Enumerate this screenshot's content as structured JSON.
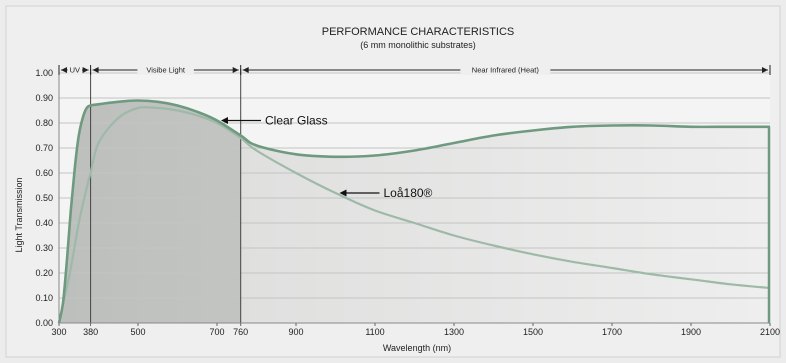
{
  "chart_data": {
    "type": "line",
    "title": "PERFORMANCE CHARACTERISTICS",
    "subtitle": "(6 mm monolithic substrates)",
    "xlabel": "Wavelength (nm)",
    "ylabel": "Light Transmission",
    "xlim": [
      300,
      2100
    ],
    "ylim": [
      0,
      1.0
    ],
    "x_ticks": [
      {
        "value": 300,
        "label": "300"
      },
      {
        "value": 380,
        "label": "380"
      },
      {
        "value": 500,
        "label": "500"
      },
      {
        "value": 700,
        "label": "700"
      },
      {
        "value": 760,
        "label": "760"
      },
      {
        "value": 900,
        "label": "900"
      },
      {
        "value": 1100,
        "label": "1100"
      },
      {
        "value": 1300,
        "label": "1300"
      },
      {
        "value": 1500,
        "label": "1500"
      },
      {
        "value": 1700,
        "label": "1700"
      },
      {
        "value": 1900,
        "label": "1900"
      },
      {
        "value": 2100,
        "label": "2100"
      }
    ],
    "y_ticks": [
      {
        "value": 0.0,
        "label": "0.00"
      },
      {
        "value": 0.1,
        "label": "0.10"
      },
      {
        "value": 0.2,
        "label": "0.20"
      },
      {
        "value": 0.3,
        "label": "0.30"
      },
      {
        "value": 0.4,
        "label": "0.40"
      },
      {
        "value": 0.5,
        "label": "0.50"
      },
      {
        "value": 0.6,
        "label": "0.60"
      },
      {
        "value": 0.7,
        "label": "0.70"
      },
      {
        "value": 0.8,
        "label": "0.80"
      },
      {
        "value": 0.9,
        "label": "0.90"
      },
      {
        "value": 1.0,
        "label": "1.00"
      }
    ],
    "grid": "horizontal",
    "regions": [
      {
        "label": "UV",
        "x": [
          300,
          380
        ]
      },
      {
        "label": "Visibe Light",
        "x": [
          380,
          760
        ]
      },
      {
        "label": "Near Infrared (Heat)",
        "x": [
          760,
          2100
        ]
      }
    ],
    "series": [
      {
        "name": "Clear Glass",
        "color": "#6f9a80",
        "x": [
          300,
          310,
          320,
          330,
          340,
          350,
          360,
          370,
          380,
          400,
          450,
          500,
          550,
          600,
          650,
          700,
          760,
          800,
          900,
          1000,
          1100,
          1200,
          1300,
          1400,
          1500,
          1600,
          1700,
          1800,
          1900,
          2000,
          2100
        ],
        "y": [
          0.0,
          0.08,
          0.25,
          0.45,
          0.62,
          0.75,
          0.82,
          0.86,
          0.87,
          0.875,
          0.885,
          0.89,
          0.885,
          0.87,
          0.845,
          0.81,
          0.75,
          0.71,
          0.675,
          0.665,
          0.67,
          0.69,
          0.72,
          0.75,
          0.77,
          0.785,
          0.79,
          0.79,
          0.785,
          0.785,
          0.785
        ]
      },
      {
        "name": "Loå180®",
        "color": "#9fb9a9",
        "x": [
          300,
          330,
          350,
          370,
          380,
          400,
          450,
          500,
          550,
          600,
          650,
          700,
          760,
          800,
          900,
          1000,
          1100,
          1200,
          1300,
          1400,
          1500,
          1600,
          1700,
          1800,
          1900,
          2000,
          2100
        ],
        "y": [
          0.0,
          0.22,
          0.4,
          0.54,
          0.6,
          0.72,
          0.82,
          0.86,
          0.86,
          0.85,
          0.83,
          0.8,
          0.74,
          0.69,
          0.6,
          0.52,
          0.45,
          0.4,
          0.35,
          0.31,
          0.275,
          0.245,
          0.22,
          0.195,
          0.175,
          0.155,
          0.14
        ]
      }
    ],
    "annotations": [
      {
        "text": "Clear Glass",
        "series": "Clear Glass",
        "x": 700
      },
      {
        "text": "Loå180®",
        "series": "Loå180®",
        "x": 1000
      }
    ],
    "colors": {
      "background": "#ececec",
      "plot_background": "#f4f4f4",
      "shade_dark": "#b9bcb9",
      "shade_light": "#dedfdd",
      "grid": "#c4c4c4"
    }
  }
}
